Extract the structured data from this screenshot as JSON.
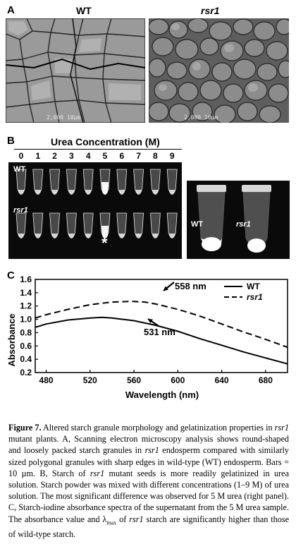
{
  "panel_a": {
    "letter": "A",
    "wt_label": "WT",
    "rsr1_label": "rsr1",
    "wt_scale_text": "2,000  10µm",
    "rsr1_scale_text": "2,000  10µm"
  },
  "panel_b": {
    "letter": "B",
    "title": "Urea Concentration (M)",
    "concentrations": [
      "0",
      "1",
      "2",
      "3",
      "4",
      "5",
      "6",
      "7",
      "8",
      "9"
    ],
    "row1_label": "WT",
    "row2_label": "rsr1",
    "star": "*",
    "right_wt_label": "WT",
    "right_rsr1_label": "rsr1"
  },
  "panel_c": {
    "letter": "C",
    "ann_558": "558 nm",
    "ann_531": "531 nm"
  },
  "chart_data": {
    "type": "line",
    "xlabel": "Wavelength (nm)",
    "ylabel": "Absorbance",
    "xlim": [
      470,
      700
    ],
    "ylim": [
      0.2,
      1.6
    ],
    "xticks": [
      "480",
      "520",
      "560",
      "600",
      "640",
      "680"
    ],
    "yticks": [
      "0.2",
      "0.4",
      "0.6",
      "0.8",
      "1.0",
      "1.2",
      "1.4",
      "1.6"
    ],
    "legend": "top-right",
    "series": [
      {
        "name": "WT",
        "style": "solid",
        "x": [
          470,
          480,
          500,
          520,
          531,
          540,
          560,
          580,
          600,
          620,
          640,
          660,
          680,
          700
        ],
        "y": [
          0.88,
          0.93,
          0.99,
          1.02,
          1.03,
          1.02,
          0.98,
          0.91,
          0.82,
          0.71,
          0.61,
          0.51,
          0.42,
          0.33
        ]
      },
      {
        "name": "rsr1",
        "style": "dashed",
        "x": [
          470,
          480,
          500,
          520,
          540,
          558,
          570,
          580,
          600,
          620,
          640,
          660,
          680,
          700
        ],
        "y": [
          1.02,
          1.07,
          1.15,
          1.22,
          1.26,
          1.27,
          1.26,
          1.23,
          1.15,
          1.05,
          0.93,
          0.81,
          0.7,
          0.58
        ]
      }
    ]
  },
  "caption": {
    "fig_label": "Figure 7.",
    "t1": " Altered starch granule morphology and gelatinization properties in ",
    "rsr1_a": "rsr1",
    "t2": " mutant plants. A, Scanning electron microscopy analysis shows round-shaped and loosely packed starch granules in ",
    "rsr1_b": "rsr1",
    "t3": " endosperm compared with similarly sized polygonal granules with sharp edges in wild-type (WT) endosperm. Bars = 10 µm. B, Starch of ",
    "rsr1_c": "rsr1",
    "t4": " mutant seeds is more readily gelatinized in urea solution. Starch powder was mixed with different concentrations (1–9 M) of urea solution. The most significant difference was observed for 5 M urea (right panel). C, Starch-iodine absorbance spectra of the supernatant from the 5 M urea sample. The absorbance value and λ",
    "max_sub": "max",
    "t5": " of ",
    "rsr1_d": "rsr1",
    "t6": " starch are significantly higher than those of wild-type starch."
  }
}
